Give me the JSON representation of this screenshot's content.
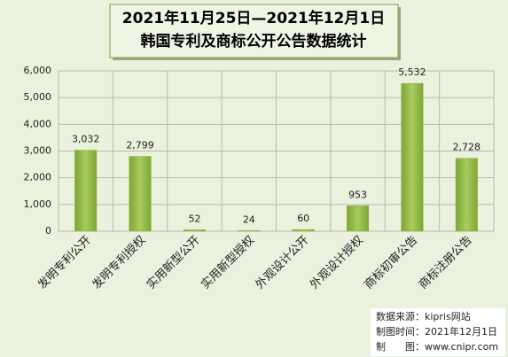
{
  "chart_data": {
    "type": "bar",
    "title": "2021年11月25日—2021年12月1日",
    "subtitle": "韩国专利及商标公开公告数据统计",
    "categories": [
      "发明专利公开",
      "发明专利授权",
      "实用新型公开",
      "实用新型授权",
      "外观设计公开",
      "外观设计授权",
      "商标初审公告",
      "商标注册公告"
    ],
    "values": [
      3032,
      2799,
      52,
      24,
      60,
      953,
      5532,
      2728
    ],
    "value_labels": [
      "3,032",
      "2,799",
      "52",
      "24",
      "60",
      "953",
      "5,532",
      "2,728"
    ],
    "color": "#8db23a",
    "ylim": [
      0,
      6000
    ],
    "yticks": [
      0,
      {
        "value": 1000,
        "label": "1,000"
      },
      {
        "value": 2000,
        "label": "2,000"
      },
      {
        "value": 3000,
        "label": "3,000"
      },
      {
        "value": 4000,
        "label": "4,000"
      },
      {
        "value": 5000,
        "label": "5,000"
      },
      {
        "value": 6000,
        "label": "6,000"
      }
    ],
    "grid": true,
    "annotations": [
      "数据来源：kipris网站",
      "制图时间：2021年12月1日",
      "制　　图：www.cnipr.com"
    ]
  }
}
